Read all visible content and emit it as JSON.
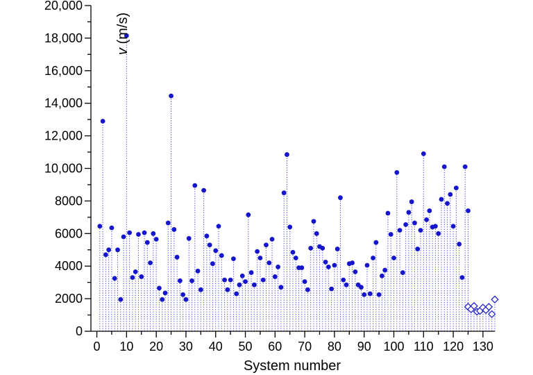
{
  "chart_data": {
    "type": "scatter",
    "xlabel": "System number",
    "ylabel_italic": "v",
    "ylabel_rest": " (m/s)",
    "xlim": [
      -2,
      134
    ],
    "ylim": [
      0,
      20000
    ],
    "x_ticks": [
      0,
      10,
      20,
      30,
      40,
      50,
      60,
      70,
      80,
      90,
      100,
      110,
      120,
      130
    ],
    "y_ticks": [
      0,
      2000,
      4000,
      6000,
      8000,
      10000,
      12000,
      14000,
      16000,
      18000,
      20000
    ],
    "y_tick_labels": [
      "0",
      "2000",
      "4000",
      "6000",
      "8000",
      "10,000",
      "12,000",
      "14,000",
      "16,000",
      "18,000",
      "20,000"
    ],
    "grid": false,
    "drop_lines": true,
    "colors": {
      "marker": "#1515cc",
      "dropline": "#3b3bd8"
    },
    "series": [
      {
        "marker": "filled-circle",
        "points": [
          [
            1,
            6450
          ],
          [
            2,
            12900
          ],
          [
            3,
            4700
          ],
          [
            4,
            5000
          ],
          [
            5,
            6350
          ],
          [
            6,
            3250
          ],
          [
            7,
            5000
          ],
          [
            8,
            1950
          ],
          [
            9,
            5800
          ],
          [
            10,
            18150
          ],
          [
            11,
            6050
          ],
          [
            12,
            3300
          ],
          [
            13,
            3650
          ],
          [
            14,
            5950
          ],
          [
            15,
            3350
          ],
          [
            16,
            6050
          ],
          [
            17,
            5450
          ],
          [
            18,
            4200
          ],
          [
            19,
            6000
          ],
          [
            20,
            5650
          ],
          [
            21,
            2650
          ],
          [
            22,
            1950
          ],
          [
            23,
            2350
          ],
          [
            24,
            6650
          ],
          [
            25,
            14450
          ],
          [
            26,
            6250
          ],
          [
            27,
            4550
          ],
          [
            28,
            3100
          ],
          [
            29,
            2250
          ],
          [
            30,
            1950
          ],
          [
            31,
            5700
          ],
          [
            32,
            3100
          ],
          [
            33,
            8950
          ],
          [
            34,
            3700
          ],
          [
            35,
            2550
          ],
          [
            36,
            8650
          ],
          [
            37,
            5850
          ],
          [
            38,
            5300
          ],
          [
            39,
            4150
          ],
          [
            40,
            4950
          ],
          [
            41,
            6450
          ],
          [
            42,
            4650
          ],
          [
            43,
            3150
          ],
          [
            44,
            2550
          ],
          [
            45,
            3150
          ],
          [
            46,
            4450
          ],
          [
            47,
            2300
          ],
          [
            48,
            2850
          ],
          [
            49,
            3400
          ],
          [
            50,
            3050
          ],
          [
            51,
            7150
          ],
          [
            52,
            3600
          ],
          [
            53,
            2850
          ],
          [
            54,
            4900
          ],
          [
            55,
            4500
          ],
          [
            56,
            3150
          ],
          [
            57,
            5300
          ],
          [
            58,
            4200
          ],
          [
            59,
            5650
          ],
          [
            60,
            3350
          ],
          [
            61,
            3950
          ],
          [
            62,
            2700
          ],
          [
            63,
            8500
          ],
          [
            64,
            10850
          ],
          [
            65,
            6400
          ],
          [
            66,
            4850
          ],
          [
            67,
            4500
          ],
          [
            68,
            3900
          ],
          [
            69,
            3900
          ],
          [
            70,
            3050
          ],
          [
            71,
            2550
          ],
          [
            72,
            5100
          ],
          [
            73,
            6750
          ],
          [
            74,
            6000
          ],
          [
            75,
            5200
          ],
          [
            76,
            5100
          ],
          [
            77,
            4250
          ],
          [
            78,
            3950
          ],
          [
            79,
            2600
          ],
          [
            80,
            4050
          ],
          [
            81,
            5050
          ],
          [
            82,
            8200
          ],
          [
            83,
            3150
          ],
          [
            84,
            2850
          ],
          [
            85,
            4150
          ],
          [
            86,
            4200
          ],
          [
            87,
            3650
          ],
          [
            88,
            2850
          ],
          [
            89,
            2700
          ],
          [
            90,
            2250
          ],
          [
            91,
            4050
          ],
          [
            92,
            2300
          ],
          [
            93,
            4500
          ],
          [
            94,
            5450
          ],
          [
            95,
            2250
          ],
          [
            96,
            3400
          ],
          [
            97,
            3750
          ],
          [
            98,
            7250
          ],
          [
            99,
            5950
          ],
          [
            100,
            4500
          ],
          [
            101,
            9750
          ],
          [
            102,
            6200
          ],
          [
            103,
            3600
          ],
          [
            104,
            6550
          ],
          [
            105,
            7300
          ],
          [
            106,
            7950
          ],
          [
            107,
            6650
          ],
          [
            108,
            5050
          ],
          [
            109,
            6200
          ],
          [
            110,
            10900
          ],
          [
            111,
            6850
          ],
          [
            112,
            7400
          ],
          [
            113,
            6400
          ],
          [
            114,
            6450
          ],
          [
            115,
            6000
          ],
          [
            116,
            8100
          ],
          [
            117,
            10100
          ],
          [
            118,
            7850
          ],
          [
            119,
            8400
          ],
          [
            120,
            6450
          ],
          [
            121,
            8800
          ],
          [
            122,
            5350
          ],
          [
            123,
            3300
          ],
          [
            124,
            10100
          ],
          [
            125,
            7400
          ]
        ]
      },
      {
        "marker": "open-diamond",
        "points": [
          [
            125,
            1500
          ],
          [
            126,
            1350
          ],
          [
            127,
            1550
          ],
          [
            128,
            1200
          ],
          [
            129,
            1250
          ],
          [
            130,
            1450
          ],
          [
            131,
            1300
          ],
          [
            132,
            1500
          ],
          [
            133,
            1050
          ],
          [
            134,
            1950
          ]
        ]
      }
    ]
  }
}
